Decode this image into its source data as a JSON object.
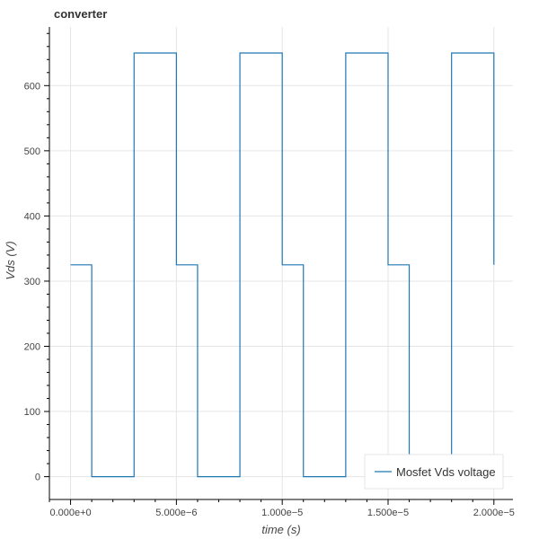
{
  "chart_data": {
    "type": "line",
    "title": "converter",
    "xlabel": "time (s)",
    "ylabel": "Vds (V)",
    "xlim": [
      -1e-06,
      2.09e-05
    ],
    "ylim": [
      -35,
      690
    ],
    "grid": true,
    "legend_position": "bottom-right",
    "x_ticks": [
      {
        "value": 0,
        "label": "0.000e+0"
      },
      {
        "value": 5e-06,
        "label": "5.000e−6"
      },
      {
        "value": 1e-05,
        "label": "1.000e−5"
      },
      {
        "value": 1.5e-05,
        "label": "1.500e−5"
      },
      {
        "value": 2e-05,
        "label": "2.000e−5"
      }
    ],
    "y_ticks": [
      {
        "value": 0,
        "label": "0"
      },
      {
        "value": 100,
        "label": "100"
      },
      {
        "value": 200,
        "label": "200"
      },
      {
        "value": 300,
        "label": "300"
      },
      {
        "value": 400,
        "label": "400"
      },
      {
        "value": 500,
        "label": "500"
      },
      {
        "value": 600,
        "label": "600"
      }
    ],
    "series": [
      {
        "name": "Mosfet Vds voltage",
        "color": "#1f77b4",
        "x": [
          0,
          1e-06,
          1e-06,
          3e-06,
          3e-06,
          5e-06,
          5e-06,
          6e-06,
          6e-06,
          8e-06,
          8e-06,
          1e-05,
          1e-05,
          1.1e-05,
          1.1e-05,
          1.3e-05,
          1.3e-05,
          1.5e-05,
          1.5e-05,
          1.6e-05,
          1.6e-05,
          1.8e-05,
          1.8e-05,
          2e-05,
          2e-05
        ],
        "y": [
          325,
          325,
          0,
          0,
          650,
          650,
          325,
          325,
          0,
          0,
          650,
          650,
          325,
          325,
          0,
          0,
          650,
          650,
          325,
          325,
          0,
          0,
          650,
          650,
          325
        ]
      }
    ]
  }
}
